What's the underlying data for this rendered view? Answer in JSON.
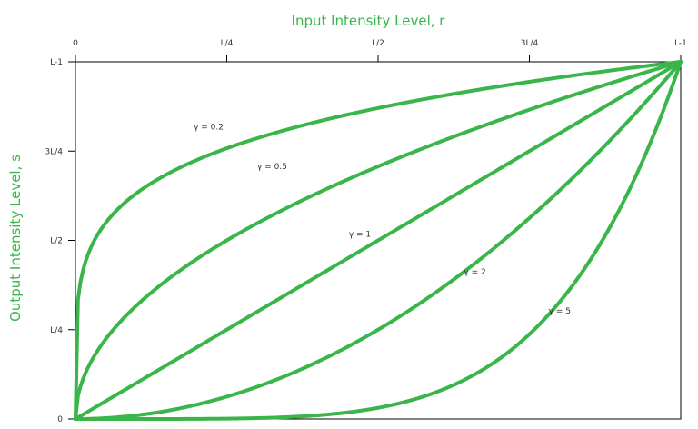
{
  "chart_data": {
    "type": "line",
    "title": "",
    "xlabel": "Input Intensity Level, r",
    "ylabel": "Output Intensity Level, s",
    "x_axis_position": "top",
    "xlim": [
      0,
      1
    ],
    "ylim": [
      0,
      1
    ],
    "grid": false,
    "legend": "none",
    "line_color": "#39b54a",
    "label_color": "#39b54a",
    "x_ticks": [
      {
        "value": 0,
        "label": "0"
      },
      {
        "value": 0.25,
        "label": "L/4"
      },
      {
        "value": 0.5,
        "label": "L/2"
      },
      {
        "value": 0.75,
        "label": "3L/4"
      },
      {
        "value": 1,
        "label": "L-1"
      }
    ],
    "y_ticks": [
      {
        "value": 0,
        "label": "0"
      },
      {
        "value": 0.25,
        "label": "L/4"
      },
      {
        "value": 0.5,
        "label": "L/2"
      },
      {
        "value": 0.75,
        "label": "3L/4"
      },
      {
        "value": 1,
        "label": "L-1"
      }
    ],
    "series": [
      {
        "gamma": 0.2,
        "label": "γ = 0.2",
        "label_at": [
          0.22,
          0.81
        ]
      },
      {
        "gamma": 0.5,
        "label": "γ = 0.5",
        "label_at": [
          0.325,
          0.7
        ]
      },
      {
        "gamma": 1,
        "label": "γ = 1",
        "label_at": [
          0.47,
          0.51
        ]
      },
      {
        "gamma": 2,
        "label": "γ = 2",
        "label_at": [
          0.66,
          0.405
        ]
      },
      {
        "gamma": 5,
        "label": "γ = 5",
        "label_at": [
          0.8,
          0.295
        ]
      }
    ]
  }
}
